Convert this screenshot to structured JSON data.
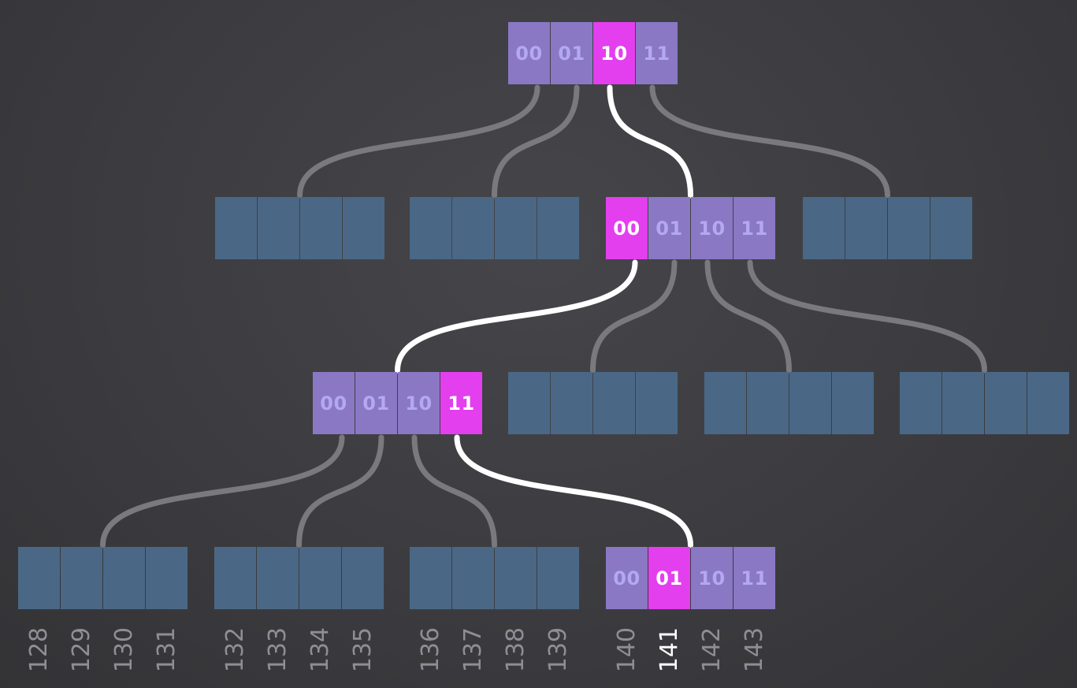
{
  "colors": {
    "background": "#3c3c40",
    "empty_cell": "#4a6886",
    "active_cell": "#8a78c4",
    "active_text": "#b4a8f0",
    "highlight_cell": "#e33fee",
    "highlight_text": "#ffffff",
    "edge": "#7a7a7e",
    "highlight_edge": "#ffffff",
    "leaf_label": "#8e8e94"
  },
  "tree": {
    "root": {
      "cells": [
        "00",
        "01",
        "10",
        "11"
      ],
      "highlight": 2
    },
    "level1": [
      {
        "id": "l1-0",
        "cells": []
      },
      {
        "id": "l1-1",
        "cells": []
      },
      {
        "id": "l1-2",
        "cells": [
          "00",
          "01",
          "10",
          "11"
        ],
        "highlight": 0
      },
      {
        "id": "l1-3",
        "cells": []
      }
    ],
    "level2": [
      {
        "id": "l2-0",
        "cells": [
          "00",
          "01",
          "10",
          "11"
        ],
        "highlight": 3
      },
      {
        "id": "l2-1",
        "cells": []
      },
      {
        "id": "l2-2",
        "cells": []
      },
      {
        "id": "l2-3",
        "cells": []
      }
    ],
    "level3": [
      {
        "id": "l3-0",
        "cells": []
      },
      {
        "id": "l3-1",
        "cells": []
      },
      {
        "id": "l3-2",
        "cells": []
      },
      {
        "id": "l3-3",
        "cells": [
          "00",
          "01",
          "10",
          "11"
        ],
        "highlight": 1
      }
    ],
    "path": [
      "10",
      "00",
      "11",
      "01"
    ]
  },
  "leaf_labels": [
    "128",
    "129",
    "130",
    "131",
    "132",
    "133",
    "134",
    "135",
    "136",
    "137",
    "138",
    "139",
    "140",
    "141",
    "142",
    "143"
  ],
  "highlight_leaf": "141"
}
